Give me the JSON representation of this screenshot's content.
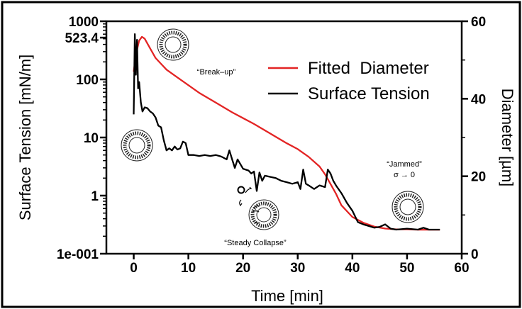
{
  "chart_data": {
    "type": "line",
    "xlabel": "Time [min]",
    "ylabel_left": "Surface Tension [mN/m]",
    "ylabel_right": "Diameter [µm]",
    "x_ticks": [
      "0",
      "10",
      "20",
      "30",
      "40",
      "50",
      "60"
    ],
    "xlim": [
      -5,
      60
    ],
    "ylim_left": [
      0.1,
      1000
    ],
    "ylim_right": [
      0,
      60
    ],
    "y_left_scale": "log",
    "y_left_ticks": [
      {
        "value": 1000,
        "label": "1000"
      },
      {
        "value": 523,
        "label": "523.4"
      },
      {
        "value": 100,
        "label": "100"
      },
      {
        "value": 10,
        "label": "10"
      },
      {
        "value": 1,
        "label": "1"
      },
      {
        "value": 0.1,
        "label": "1e-001"
      }
    ],
    "y_right_ticks": [
      {
        "value": 0,
        "label": "0"
      },
      {
        "value": 20,
        "label": "20"
      },
      {
        "value": 40,
        "label": "40"
      },
      {
        "value": 60,
        "label": "60"
      }
    ],
    "legend_position": "top-right",
    "grid": false,
    "series": [
      {
        "name": "Fitted  Diameter",
        "axis": "right",
        "color": "#e32424",
        "x": [
          0,
          0.5,
          1,
          1.5,
          2,
          3,
          4,
          5,
          6,
          8,
          10,
          12,
          15,
          18,
          20,
          22,
          25,
          28,
          30,
          32,
          34,
          35,
          36,
          37,
          38,
          40,
          42,
          44,
          46,
          48,
          50,
          52,
          54,
          56
        ],
        "y": [
          47,
          52,
          55,
          56,
          55.5,
          53,
          50.5,
          49,
          47.5,
          45.5,
          43.5,
          41.5,
          39,
          36.5,
          35,
          33.5,
          31,
          28.5,
          27,
          25,
          22.5,
          20.5,
          18,
          15.5,
          12.5,
          9.5,
          8,
          7,
          6.5,
          6.3,
          6.3,
          6.2,
          6.2,
          6.2
        ]
      },
      {
        "name": "Surface Tension",
        "axis": "left",
        "color": "#000000",
        "x": [
          0,
          0.2,
          0.4,
          0.6,
          0.8,
          1,
          1.3,
          1.6,
          2,
          2.5,
          3,
          3.5,
          4,
          4.5,
          5,
          5.5,
          6,
          6.5,
          7,
          7.5,
          8,
          8.5,
          9,
          9.5,
          10,
          11,
          12,
          13,
          14,
          15,
          16,
          17,
          17.5,
          18,
          18.5,
          19,
          20,
          21,
          21.5,
          22,
          22.5,
          23,
          23.5,
          24,
          25,
          26,
          27,
          28,
          29,
          30,
          30.5,
          31,
          31.5,
          32,
          33,
          34,
          35,
          35.5,
          36,
          36.5,
          37,
          38,
          39,
          40,
          41,
          42,
          43,
          44,
          45,
          46,
          47,
          48,
          50,
          52,
          53,
          54,
          56
        ],
        "y": [
          25,
          600,
          120,
          480,
          70,
          90,
          40,
          28,
          33,
          32,
          28,
          26,
          22,
          16,
          15,
          9,
          6,
          6.5,
          6,
          7,
          6.2,
          6.5,
          8.5,
          8,
          5,
          5,
          4.8,
          5,
          4.8,
          5,
          4.7,
          4.2,
          6,
          4.2,
          3,
          4.2,
          2.9,
          2.7,
          2.4,
          2.6,
          1.2,
          2.5,
          1.8,
          2.2,
          2.1,
          2.0,
          1.8,
          1.7,
          1.6,
          1.7,
          1.3,
          2.8,
          1.6,
          1.5,
          1.3,
          1.5,
          1.4,
          2.8,
          2.4,
          1.8,
          1.5,
          1.1,
          0.75,
          0.55,
          0.35,
          0.32,
          0.3,
          0.28,
          0.29,
          0.32,
          0.27,
          0.26,
          0.27,
          0.26,
          0.28,
          0.26,
          0.26
        ]
      }
    ],
    "annotations": [
      {
        "text": "“Break–up”",
        "x": 12.5,
        "y": 130
      },
      {
        "text": "“Jammed”",
        "x": 50,
        "y": 24
      },
      {
        "text": "σ → 0",
        "x": 50,
        "y": 21
      },
      {
        "text": "“Steady Collapse”",
        "x": 24,
        "y": 0.1
      }
    ]
  }
}
